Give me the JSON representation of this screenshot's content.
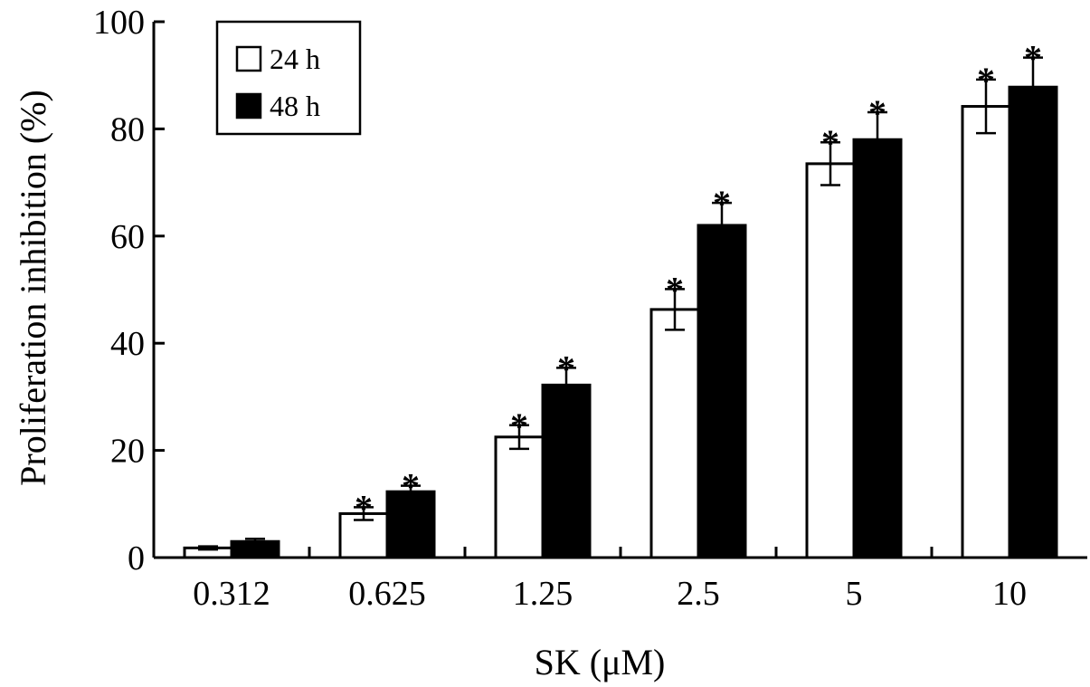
{
  "chart_data": {
    "type": "bar",
    "title": "",
    "xlabel": "SK (μM)",
    "ylabel": "Proliferation inhibition (%)",
    "ylim": [
      0,
      100
    ],
    "yticks": [
      0,
      20,
      40,
      60,
      80,
      100
    ],
    "yticks_text": [
      "0",
      "20",
      "40",
      "60",
      "80",
      "100"
    ],
    "categories": [
      "0.312",
      "0.625",
      "1.25",
      "2.5",
      "5",
      "10"
    ],
    "series": [
      {
        "name": "24 h",
        "color": "#ffffff",
        "values": [
          1.8,
          8.2,
          22.5,
          46.3,
          73.5,
          84.2
        ],
        "errors": [
          0.3,
          1.2,
          2.2,
          3.8,
          4.0,
          5.0
        ],
        "significance": [
          "",
          "*",
          "*",
          "*",
          "*",
          "*"
        ]
      },
      {
        "name": "48 h",
        "color": "#000000",
        "values": [
          3.0,
          12.3,
          32.2,
          62.0,
          78.0,
          87.8
        ],
        "errors": [
          0.5,
          1.1,
          3.2,
          4.2,
          5.1,
          5.5
        ],
        "significance": [
          "",
          "*",
          "*",
          "*",
          "*",
          "*"
        ]
      }
    ],
    "legend": {
      "position": "top-left",
      "entries": [
        "24 h",
        "48 h"
      ]
    },
    "grid": false
  }
}
